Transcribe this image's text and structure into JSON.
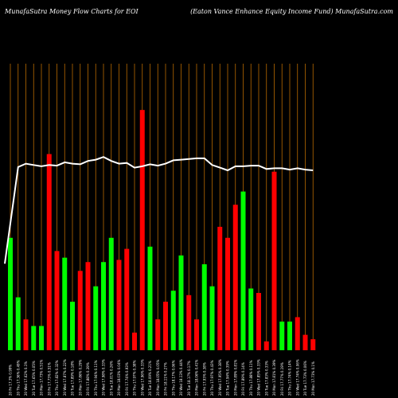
{
  "header": {
    "title_left": "MunafaSutra  Money Flow  Charts for EOI",
    "title_right": "(Eaton  Vance   Enhance    Equity Income    Fund) MunafaSutra.com"
  },
  "colors": {
    "background": "#000000",
    "up": "#00ff00",
    "down": "#ff0000",
    "line": "#ffffff",
    "grid": "#b86a00"
  },
  "chart_data": {
    "type": "bar",
    "title": "MunafaSutra  Money Flow  Charts for EOI",
    "grid": true,
    "categories": [
      "20 Fri 17.3% 0.99%",
      "20 Thu 17.36% 0.49%",
      "20 Wed 17.62% 0.1%",
      "20 Tue 17.65% 0.05%",
      "20 Mon 17.73% 0.51%",
      "20 Fri 17.73% 0.51%",
      "20 Thu 17.82% 0.32%",
      "20 Wed 17.87% 0.22%",
      "20 Tue 17.89% 0.18%",
      "20 Mon 17.86% 0.29%",
      "20 Fri 17.88% 0.39%",
      "20 Thu 17.94% 0.11%",
      "20 Wed 17.98% 0.33%",
      "20 Tue 18.01% 0.26%",
      "20 Mon 18.03% 0.04%",
      "20 Fri 17.74% 0.93%",
      "20 Thu 17.97% 0.38%",
      "20 Wed 17.96% 0.33%",
      "20 Tue 18.09% 0.21%",
      "20 Mon 18.05% 0.05%",
      "20 Fri 18.11% 0.27%",
      "20 Thu 18.17% 0.06%",
      "20 Wed 18.13% 0.44%",
      "20 Tue 18.17% 0.17%",
      "20 Mon 18.06% 0.41%",
      "20 Fri 17.93% 0.38%",
      "20 Thu 17.97% 0.43%",
      "20 Wed 17.95% 0.38%",
      "20 Tue 17.94% 0.39%",
      "20 Mon 17.89% 0.81%",
      "20 Fri 17.89% 0.14%",
      "20 Thu 17.88% 0.11%",
      "20 Wed 17.85% 0.33%",
      "20 Tue 17.83% 0.33%",
      "20 Mon 17.81% 0.39%",
      "20 Fri 17.77% 0.19%",
      "20 Thu 17.74% 0.14%",
      "20 Wed 17.74% 0.06%",
      "20 Tue 17.73% 0.06%",
      "20 Mon 17.73% 0.1%"
    ],
    "bar_values": [
      0.51,
      0.24,
      0.14,
      0.11,
      0.11,
      0.89,
      0.45,
      0.42,
      0.22,
      0.36,
      0.4,
      0.29,
      0.4,
      0.51,
      0.41,
      0.46,
      0.08,
      1.09,
      0.47,
      0.14,
      0.22,
      0.27,
      0.43,
      0.25,
      0.14,
      0.39,
      0.29,
      0.56,
      0.51,
      0.66,
      0.72,
      0.28,
      0.26,
      0.04,
      0.81,
      0.13,
      0.13,
      0.15,
      0.07,
      0.05
    ],
    "bar_colors": [
      "up",
      "up",
      "down",
      "up",
      "up",
      "down",
      "down",
      "up",
      "up",
      "down",
      "down",
      "up",
      "up",
      "up",
      "down",
      "down",
      "down",
      "down",
      "up",
      "down",
      "down",
      "up",
      "up",
      "down",
      "down",
      "up",
      "up",
      "down",
      "down",
      "down",
      "up",
      "up",
      "down",
      "down",
      "down",
      "up",
      "up",
      "down",
      "down",
      "down"
    ],
    "line_values": [
      17.3,
      18.75,
      18.8,
      18.78,
      18.76,
      18.78,
      18.77,
      18.82,
      18.8,
      18.79,
      18.84,
      18.86,
      18.9,
      18.84,
      18.8,
      18.81,
      18.74,
      18.76,
      18.79,
      18.77,
      18.8,
      18.85,
      18.86,
      18.87,
      18.88,
      18.88,
      18.78,
      18.74,
      18.7,
      18.76,
      18.76,
      18.77,
      18.77,
      18.72,
      18.73,
      18.73,
      18.71,
      18.73,
      18.71,
      18.7
    ],
    "bar_ylim": [
      0,
      1.3
    ],
    "line_ylim": [
      16.0,
      20.3
    ]
  }
}
